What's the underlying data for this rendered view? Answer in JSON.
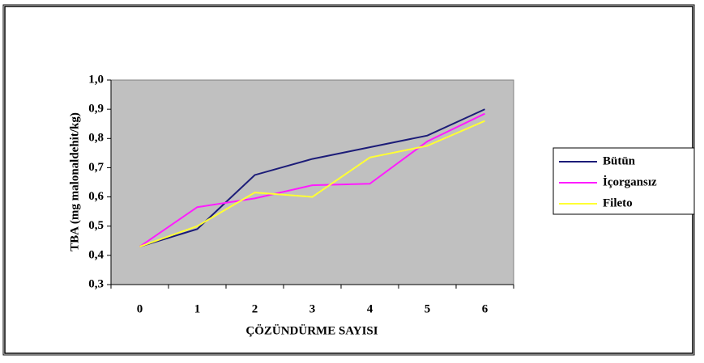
{
  "chart_data": {
    "type": "line",
    "y_label": "TBA (mg malonaldehit/kg)",
    "x_label": "ÇÖZÜNDÜRME SAYISI",
    "categories": [
      "0",
      "1",
      "2",
      "3",
      "4",
      "5",
      "6"
    ],
    "series": [
      {
        "name": "Bütün",
        "color": "#1c1c78",
        "values": [
          0.43,
          0.49,
          0.675,
          0.73,
          0.77,
          0.81,
          0.9
        ]
      },
      {
        "name": "İçorgansız",
        "color": "#ff1cff",
        "values": [
          0.43,
          0.565,
          0.595,
          0.64,
          0.645,
          0.79,
          0.885
        ]
      },
      {
        "name": "Fileto",
        "color": "#ffff33",
        "values": [
          0.43,
          0.5,
          0.615,
          0.6,
          0.735,
          0.775,
          0.86
        ]
      }
    ],
    "ylim": [
      0.3,
      1.0
    ],
    "yticks": [
      {
        "value": 0.3,
        "label": "0,3"
      },
      {
        "value": 0.4,
        "label": "0,4"
      },
      {
        "value": 0.5,
        "label": "0,5"
      },
      {
        "value": 0.6,
        "label": "0,6"
      },
      {
        "value": 0.7,
        "label": "0,7"
      },
      {
        "value": 0.8,
        "label": "0,8"
      },
      {
        "value": 0.9,
        "label": "0,9"
      },
      {
        "value": 1.0,
        "label": "1,0"
      }
    ],
    "plot_background": "#c0c0c0",
    "legend": "right"
  }
}
